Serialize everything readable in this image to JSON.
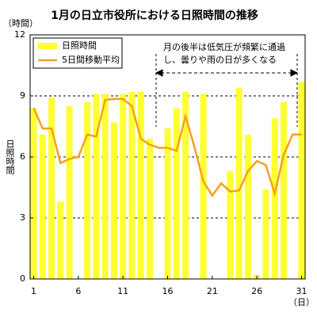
{
  "chart_data": {
    "type": "bar_line",
    "title": "1月の日立市役所における日照時間の推移",
    "y_unit": "（時間）",
    "y_label": "日照時間",
    "x_unit": "（日）",
    "annotation": [
      "月の後半は低気圧が頻繁に通過",
      "し、曇りや雨の日が多くなる"
    ],
    "x": [
      1,
      2,
      3,
      4,
      5,
      6,
      7,
      8,
      9,
      10,
      11,
      12,
      13,
      14,
      15,
      16,
      17,
      18,
      19,
      20,
      21,
      22,
      23,
      24,
      25,
      26,
      27,
      28,
      29,
      30,
      31
    ],
    "series": [
      {
        "name": "日照時間",
        "type": "bar",
        "color": "#ffff33",
        "values": [
          8.4,
          7.1,
          8.9,
          3.8,
          8.5,
          0,
          8.7,
          9.1,
          9.1,
          7.7,
          9.1,
          9.2,
          9.2,
          6.9,
          0,
          7.4,
          8.4,
          9.2,
          0,
          9.1,
          0,
          0,
          5.3,
          9.4,
          7.1,
          0.2,
          4.4,
          7.9,
          8.7,
          0,
          9.7
        ]
      },
      {
        "name": "5日間移動平均",
        "type": "line",
        "color": "#f5a01e",
        "values": [
          8.4,
          7.4,
          7.4,
          5.7,
          5.9,
          6.0,
          7.1,
          7.0,
          8.8,
          8.85,
          8.85,
          8.5,
          6.9,
          6.6,
          6.45,
          6.45,
          6.3,
          8.0,
          6.5,
          4.8,
          4.1,
          4.7,
          4.3,
          4.35,
          5.3,
          5.8,
          5.6,
          4.2,
          6.1,
          7.1,
          7.1
        ]
      }
    ],
    "xlim": [
      0.6,
      31.4
    ],
    "xticks": [
      1,
      6,
      11,
      16,
      21,
      26,
      31
    ],
    "ylim": [
      0,
      12
    ],
    "yticks": [
      0,
      3,
      6,
      9,
      12
    ],
    "grid": true
  }
}
